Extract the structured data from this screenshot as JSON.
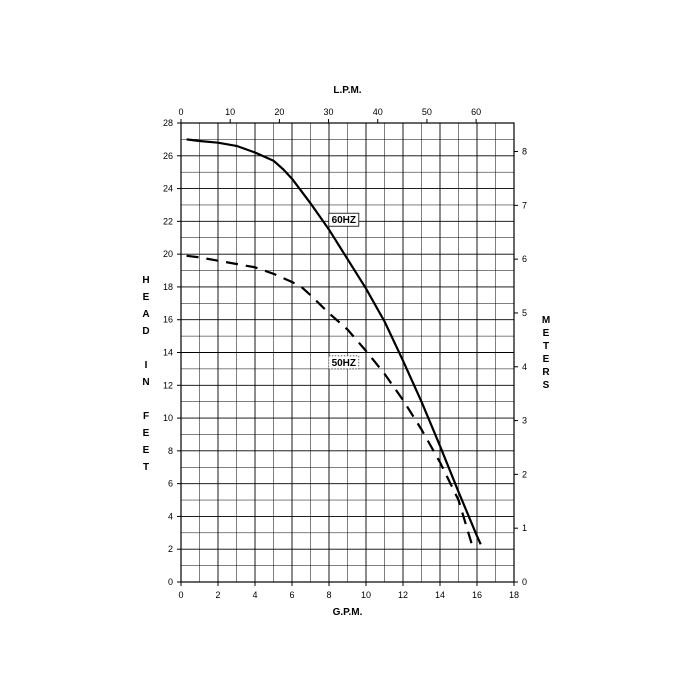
{
  "chart_data": {
    "type": "line",
    "top_axis_title": "L.P.M.",
    "xlabel": "G.P.M.",
    "ylabel": "HEAD IN FEET",
    "y2label": "METERS",
    "xlim": [
      0,
      18
    ],
    "ylim": [
      0,
      28
    ],
    "top_lim": [
      0,
      67.7
    ],
    "y2lim": [
      0,
      8.53
    ],
    "x_ticks": [
      "0",
      "2",
      "4",
      "6",
      "8",
      "10",
      "12",
      "14",
      "16",
      "18"
    ],
    "y_ticks": [
      "0",
      "2",
      "4",
      "6",
      "8",
      "10",
      "12",
      "14",
      "16",
      "18",
      "20",
      "22",
      "24",
      "26",
      "28"
    ],
    "top_ticks": [
      "0",
      "10",
      "20",
      "30",
      "40",
      "50",
      "60"
    ],
    "y2_ticks": [
      "0",
      "1",
      "2",
      "3",
      "4",
      "5",
      "6",
      "7",
      "8"
    ],
    "grid": true,
    "series": [
      {
        "name": "60HZ",
        "style": "solid",
        "x": [
          0.3,
          1.0,
          2.0,
          3.0,
          4.0,
          5.0,
          5.5,
          6.0,
          7.0,
          8.0,
          9.0,
          10.0,
          11.0,
          12.0,
          13.0,
          14.0,
          15.0,
          16.0,
          16.2
        ],
        "y": [
          27.0,
          26.9,
          26.8,
          26.6,
          26.2,
          25.7,
          25.2,
          24.6,
          23.1,
          21.5,
          19.7,
          17.9,
          15.9,
          13.5,
          11.0,
          8.3,
          5.5,
          2.8,
          2.3
        ]
      },
      {
        "name": "50HZ",
        "style": "dashed",
        "x": [
          0.3,
          1.0,
          2.0,
          3.0,
          4.0,
          5.0,
          6.0,
          6.5,
          7.0,
          8.0,
          9.0,
          10.0,
          11.0,
          12.0,
          13.0,
          14.0,
          15.0,
          15.8
        ],
        "y": [
          19.9,
          19.8,
          19.6,
          19.4,
          19.2,
          18.8,
          18.3,
          18.0,
          17.5,
          16.4,
          15.4,
          14.1,
          12.7,
          11.1,
          9.3,
          7.3,
          5.0,
          2.0
        ]
      }
    ],
    "annotations": [
      {
        "text": "60HZ",
        "x": 8.8,
        "y": 22.1,
        "boxed": true,
        "box_style": "solid"
      },
      {
        "text": "50HZ",
        "x": 8.8,
        "y": 13.4,
        "boxed": true,
        "box_style": "dotted"
      }
    ],
    "colors": {
      "line": "#000000",
      "grid": "#000000",
      "background": "#ffffff"
    }
  }
}
